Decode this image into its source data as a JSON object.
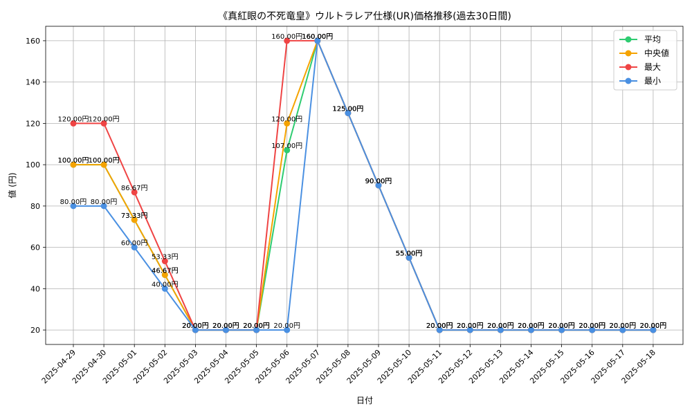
{
  "chart_data": {
    "type": "line",
    "title": "《真紅眼の不死竜皇》ウルトラレア仕様(UR)価格推移(過去30日間)",
    "xlabel": "日付",
    "ylabel": "値 (円)",
    "ylim": [
      13,
      167
    ],
    "yticks": [
      20,
      40,
      60,
      80,
      100,
      120,
      140,
      160
    ],
    "grid": true,
    "legend_position": "top-right",
    "value_suffix": "円",
    "categories": [
      "2025-04-29",
      "2025-04-30",
      "2025-05-01",
      "2025-05-02",
      "2025-05-03",
      "2025-05-04",
      "2025-05-05",
      "2025-05-06",
      "2025-05-07",
      "2025-05-08",
      "2025-05-09",
      "2025-05-10",
      "2025-05-11",
      "2025-05-12",
      "2025-05-13",
      "2025-05-14",
      "2025-05-15",
      "2025-05-16",
      "2025-05-17",
      "2025-05-18"
    ],
    "series": [
      {
        "name": "平均",
        "color": "#2ecc71",
        "values": [
          100,
          100,
          73.33,
          46.67,
          20,
          20,
          20,
          107,
          160,
          125,
          90,
          55,
          20,
          20,
          20,
          20,
          20,
          20,
          20,
          20
        ]
      },
      {
        "name": "中央値",
        "color": "#f5a300",
        "values": [
          100,
          100,
          73.33,
          46.67,
          20,
          20,
          20,
          120,
          160,
          125,
          90,
          55,
          20,
          20,
          20,
          20,
          20,
          20,
          20,
          20
        ]
      },
      {
        "name": "最大",
        "color": "#ef4444",
        "values": [
          120,
          120,
          86.67,
          53.33,
          20,
          20,
          20,
          160,
          160,
          125,
          90,
          55,
          20,
          20,
          20,
          20,
          20,
          20,
          20,
          20
        ]
      },
      {
        "name": "最小",
        "color": "#4a90e2",
        "values": [
          80,
          80,
          60,
          40,
          20,
          20,
          20,
          20,
          160,
          125,
          90,
          55,
          20,
          20,
          20,
          20,
          20,
          20,
          20,
          20
        ]
      }
    ]
  }
}
